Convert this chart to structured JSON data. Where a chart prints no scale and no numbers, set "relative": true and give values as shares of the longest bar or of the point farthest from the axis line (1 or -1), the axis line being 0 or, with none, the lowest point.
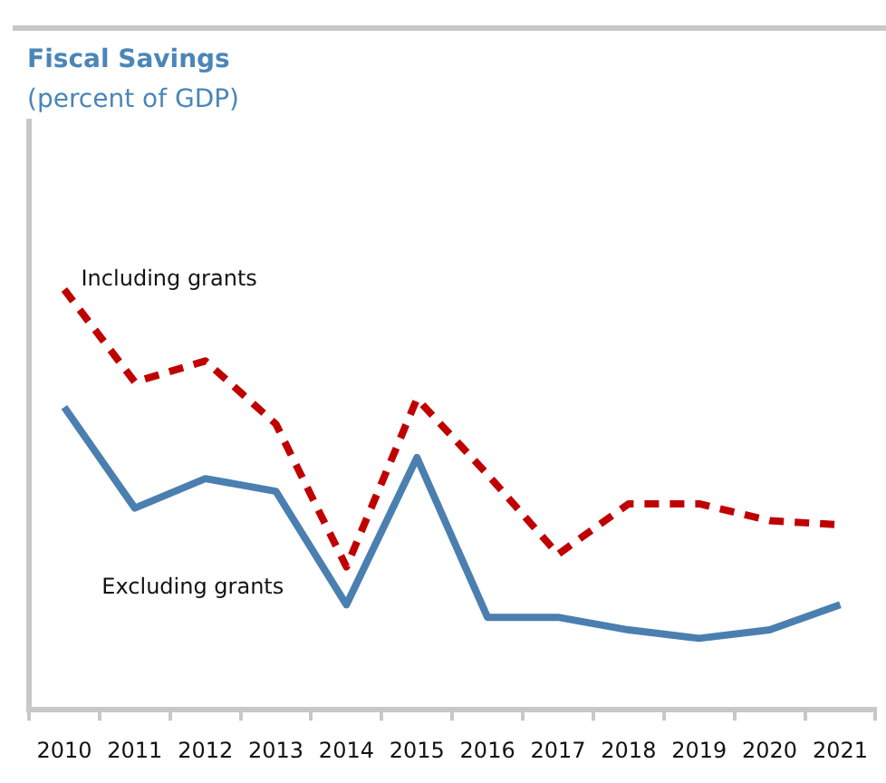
{
  "chart_data": {
    "type": "line",
    "title": "Fiscal Savings",
    "subtitle": "(percent of GDP)",
    "relative": true,
    "legend": false,
    "grid": false,
    "categories": [
      "2010",
      "2011",
      "2012",
      "2013",
      "2014",
      "2015",
      "2016",
      "2017",
      "2018",
      "2019",
      "2020",
      "2021"
    ],
    "series": [
      {
        "name": "Including grants",
        "color": "#c00000",
        "line_style": "dashed",
        "values": [
          1,
          0.78,
          0.83,
          0.68,
          0.34,
          0.74,
          0.56,
          0.37,
          0.49,
          0.49,
          0.45,
          0.44
        ]
      },
      {
        "name": "Excluding grants",
        "color": "#4a7fb0",
        "line_style": "solid",
        "values": [
          0.72,
          0.48,
          0.55,
          0.52,
          0.25,
          0.6,
          0.22,
          0.22,
          0.19,
          0.17,
          0.19,
          0.25
        ]
      }
    ]
  }
}
